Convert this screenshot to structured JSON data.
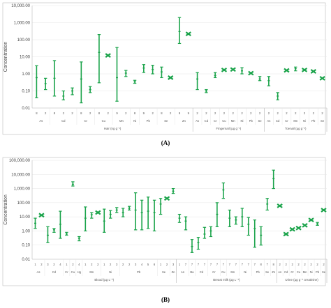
{
  "panels": [
    {
      "label": "(A)"
    },
    {
      "label": "(B)"
    }
  ],
  "chart_data": [
    {
      "type": "range",
      "ylabel": "Concentration",
      "yscale": "log",
      "ylim": [
        0.01,
        10000
      ],
      "ytick_labels": [
        "0.01",
        "0.10",
        "1.00",
        "10.00",
        "100.00",
        "1,000.00",
        "10,000.00"
      ],
      "groups": [
        {
          "label": "Hair (ng g⁻¹)",
          "elements": [
            "As",
            "Cd",
            "Cr",
            "Cu",
            "Mn",
            "Ni",
            "Pb",
            "Se",
            "Zn"
          ],
          "items": [
            {
              "el": "As",
              "n": "8",
              "min": 0.04,
              "mean": 0.6,
              "max": 3.0
            },
            {
              "el": "As",
              "n": "2",
              "min": 0.12,
              "mean": 0.27,
              "max": 0.55
            },
            {
              "el": "Cd",
              "n": "8",
              "min": 0.05,
              "mean": 0.55,
              "max": 6.0
            },
            {
              "el": "Cd",
              "n": "2",
              "min": 0.03,
              "mean": 0.05,
              "max": 0.1
            },
            {
              "el": "Cd",
              "n": "2",
              "min": 0.06,
              "mean": 0.1,
              "max": 0.15
            },
            {
              "el": "Cr",
              "n": "8",
              "min": 0.02,
              "mean": 0.5,
              "max": 5.0
            },
            {
              "el": "Cr",
              "n": "2",
              "min": 0.08,
              "mean": 0.12,
              "max": 0.18
            },
            {
              "el": "Cu",
              "n": "8",
              "min": 0.3,
              "mean": 18,
              "max": 200
            },
            {
              "el": "Cu",
              "n": "2",
              "min": 11,
              "mean": 12,
              "max": 15
            },
            {
              "el": "Mn",
              "n": "9",
              "min": 0.025,
              "mean": 0.6,
              "max": 35
            },
            {
              "el": "Mn",
              "n": "2",
              "min": 0.7,
              "mean": 1.1,
              "max": 1.6
            },
            {
              "el": "Ni",
              "n": "8",
              "min": 0.28,
              "mean": 0.34,
              "max": 0.42
            },
            {
              "el": "Pb",
              "n": "9",
              "min": 1.2,
              "mean": 2.2,
              "max": 3.5
            },
            {
              "el": "Pb",
              "n": "2",
              "min": 1.0,
              "mean": 1.8,
              "max": 3.2
            },
            {
              "el": "Se",
              "n": "8",
              "min": 0.6,
              "mean": 1.3,
              "max": 2.5
            },
            {
              "el": "Se",
              "n": "2",
              "min": 0.5,
              "mean": 0.6,
              "max": 0.7
            },
            {
              "el": "Zn",
              "n": "9",
              "min": 60,
              "mean": 300,
              "max": 2000
            },
            {
              "el": "Zn",
              "n": "9",
              "min": 200,
              "mean": 220,
              "max": 240
            }
          ]
        },
        {
          "label": "Fingernail (μg g⁻¹)",
          "elements": [
            "As",
            "Cd",
            "Cr",
            "Cu",
            "Mn",
            "Ni",
            "Pb",
            "Se"
          ],
          "items": [
            {
              "el": "As",
              "n": "2",
              "min": 0.12,
              "mean": 0.5,
              "max": 1.2
            },
            {
              "el": "Cd",
              "n": "2",
              "min": 0.08,
              "mean": 0.1,
              "max": 0.12
            },
            {
              "el": "Cr",
              "n": "2",
              "min": 0.6,
              "mean": 0.8,
              "max": 1.2
            },
            {
              "el": "Cu",
              "n": "2",
              "min": 1.6,
              "mean": 1.7,
              "max": 1.8
            },
            {
              "el": "Mn",
              "n": "2",
              "min": 1.6,
              "mean": 1.8,
              "max": 2.0
            },
            {
              "el": "Ni",
              "n": "2",
              "min": 1.0,
              "mean": 1.5,
              "max": 2.3
            },
            {
              "el": "Pb",
              "n": "2",
              "min": 0.9,
              "mean": 1.1,
              "max": 1.3
            },
            {
              "el": "Se",
              "n": "2",
              "min": 0.4,
              "mean": 0.5,
              "max": 0.7
            }
          ]
        },
        {
          "label": "Toenail (μg g⁻¹)",
          "elements": [
            "As",
            "Cd",
            "Cr",
            "Mn",
            "Ni",
            "Pb",
            "Se"
          ],
          "items": [
            {
              "el": "As",
              "n": "2",
              "min": 0.2,
              "mean": 0.4,
              "max": 0.7
            },
            {
              "el": "Cd",
              "n": "2",
              "min": 0.03,
              "mean": 0.05,
              "max": 0.08
            },
            {
              "el": "Cr",
              "n": "2",
              "min": 1.5,
              "mean": 1.6,
              "max": 1.7
            },
            {
              "el": "Mn",
              "n": "2",
              "min": 1.5,
              "mean": 2.0,
              "max": 2.5
            },
            {
              "el": "Ni",
              "n": "2",
              "min": 1.6,
              "mean": 1.7,
              "max": 1.8
            },
            {
              "el": "Pb",
              "n": "2",
              "min": 1.2,
              "mean": 1.4,
              "max": 1.6
            },
            {
              "el": "Se",
              "n": "2",
              "min": 0.5,
              "mean": 0.55,
              "max": 0.6
            }
          ]
        }
      ]
    },
    {
      "type": "range",
      "ylabel": "Concentration",
      "yscale": "log",
      "ylim": [
        0.01,
        100000
      ],
      "ytick_labels": [
        "0.01",
        "0.10",
        "1.00",
        "10.00",
        "100.00",
        "1,000.00",
        "10,000.00",
        "100,000.00"
      ],
      "groups": [
        {
          "label": "Blood (μg L⁻¹)",
          "elements": [
            "As",
            "Cd",
            "Cr",
            "Cu",
            "Hg",
            "Mn",
            "Ni",
            "Pb",
            "Se",
            "Zn"
          ],
          "items": [
            {
              "el": "As",
              "n": "1",
              "min": 1.5,
              "mean": 3.5,
              "max": 8
            },
            {
              "el": "As",
              "n": "2",
              "min": 11,
              "mean": 13,
              "max": 15
            },
            {
              "el": "Cd",
              "n": "3",
              "min": 0.15,
              "mean": 0.5,
              "max": 2
            },
            {
              "el": "Cd",
              "n": "2",
              "min": 0.8,
              "mean": 1.2,
              "max": 1.5
            },
            {
              "el": "Cd",
              "n": "4",
              "min": 0.3,
              "mean": 3,
              "max": 25
            },
            {
              "el": "Cr",
              "n": "1",
              "min": 0.5,
              "mean": 0.6,
              "max": 0.8
            },
            {
              "el": "Cu",
              "n": "2",
              "min": 1500,
              "mean": 2000,
              "max": 3000
            },
            {
              "el": "Hg",
              "n": "4",
              "min": 0.2,
              "mean": 0.3,
              "max": 0.4
            },
            {
              "el": "Mn",
              "n": "1",
              "min": 1.0,
              "mean": 8,
              "max": 50
            },
            {
              "el": "Mn",
              "n": "2",
              "min": 8,
              "mean": 14,
              "max": 20
            },
            {
              "el": "Mn",
              "n": "2",
              "min": 18,
              "mean": 20,
              "max": 22
            },
            {
              "el": "Ni",
              "n": "1",
              "min": 0.8,
              "mean": 5,
              "max": 35
            },
            {
              "el": "Ni",
              "n": "2",
              "min": 8,
              "mean": 15,
              "max": 28
            },
            {
              "el": "Ni",
              "n": "3",
              "min": 20,
              "mean": 30,
              "max": 45
            },
            {
              "el": "Pb",
              "n": "2",
              "min": 10,
              "mean": 20,
              "max": 40
            },
            {
              "el": "Pb",
              "n": "2",
              "min": 30,
              "mean": 40,
              "max": 55
            },
            {
              "el": "Pb",
              "n": "3",
              "min": 1.2,
              "mean": 30,
              "max": 500
            },
            {
              "el": "Pb",
              "n": "4",
              "min": 1.2,
              "mean": 20,
              "max": 150
            },
            {
              "el": "Pb",
              "n": "5",
              "min": 1.5,
              "mean": 25,
              "max": 250
            },
            {
              "el": "Pb",
              "n": "6",
              "min": 1.0,
              "mean": 20,
              "max": 150
            },
            {
              "el": "Se",
              "n": "1",
              "min": 15,
              "mean": 80,
              "max": 200
            },
            {
              "el": "Se",
              "n": "2",
              "min": 180,
              "mean": 200,
              "max": 220
            },
            {
              "el": "Zn",
              "n": "3",
              "min": 450,
              "mean": 650,
              "max": 1000
            }
          ]
        },
        {
          "label": "Breast milk (μg L⁻¹)",
          "elements": [
            "As",
            "Ba",
            "Cd",
            "Cr",
            "Cu",
            "Mn",
            "Ni",
            "Pb",
            "Se",
            "Zn"
          ],
          "items": [
            {
              "el": "As",
              "n": "1",
              "min": 4,
              "mean": 8,
              "max": 15
            },
            {
              "el": "As",
              "n": "7",
              "min": 1.2,
              "mean": 5,
              "max": 10
            },
            {
              "el": "Ba",
              "n": "7",
              "min": 0.03,
              "mean": 0.08,
              "max": 0.25
            },
            {
              "el": "Cd",
              "n": "7",
              "min": 0.05,
              "mean": 0.15,
              "max": 0.35
            },
            {
              "el": "Cd",
              "n": "7",
              "min": 0.3,
              "mean": 0.6,
              "max": 1.8
            },
            {
              "el": "Cr",
              "n": "7",
              "min": 0.4,
              "mean": 1.0,
              "max": 2.0
            },
            {
              "el": "Cr",
              "n": "7",
              "min": 2,
              "mean": 15,
              "max": 100
            },
            {
              "el": "Cu",
              "n": "7",
              "min": 200,
              "mean": 800,
              "max": 2500
            },
            {
              "el": "Mn",
              "n": "7",
              "min": 2,
              "mean": 8,
              "max": 30
            },
            {
              "el": "Mn",
              "n": "7",
              "min": 3,
              "mean": 6,
              "max": 10
            },
            {
              "el": "Ni",
              "n": "7",
              "min": 2,
              "mean": 10,
              "max": 40
            },
            {
              "el": "Ni",
              "n": "7",
              "min": 0.5,
              "mean": 3,
              "max": 9
            },
            {
              "el": "Pb",
              "n": "7",
              "min": 0.07,
              "mean": 1.5,
              "max": 6
            },
            {
              "el": "Pb",
              "n": "8",
              "min": 0.1,
              "mean": 0.5,
              "max": 2
            },
            {
              "el": "Se",
              "n": "7",
              "min": 30,
              "mean": 80,
              "max": 200
            },
            {
              "el": "Zn",
              "n": "8",
              "min": 1000,
              "mean": 5000,
              "max": 20000
            }
          ]
        },
        {
          "label": "Urine (μg g⁻¹ creatinine)",
          "elements": [
            "As",
            "Cd",
            "Cr",
            "Cu",
            "Mn",
            "Ni",
            "Pb",
            "Se"
          ],
          "items": [
            {
              "el": "As",
              "n": "2",
              "min": 50,
              "mean": 60,
              "max": 70
            },
            {
              "el": "Cd",
              "n": "2",
              "min": 0.5,
              "mean": 0.6,
              "max": 0.7
            },
            {
              "el": "Cr",
              "n": "2",
              "min": 1.2,
              "mean": 1.3,
              "max": 1.4
            },
            {
              "el": "Cu",
              "n": "2",
              "min": 1.5,
              "mean": 1.6,
              "max": 1.8
            },
            {
              "el": "Mn",
              "n": "2",
              "min": 2,
              "mean": 2.5,
              "max": 3
            },
            {
              "el": "Ni",
              "n": "2",
              "min": 5,
              "mean": 6,
              "max": 7
            },
            {
              "el": "Pb",
              "n": "2",
              "min": 2.5,
              "mean": 3.2,
              "max": 4
            },
            {
              "el": "Se",
              "n": "2",
              "min": 28,
              "mean": 30,
              "max": 32
            }
          ]
        }
      ]
    }
  ],
  "colors": {
    "series": "#1aa34a",
    "axis": "#bbbbbb",
    "grid": "#e6e6e6"
  }
}
